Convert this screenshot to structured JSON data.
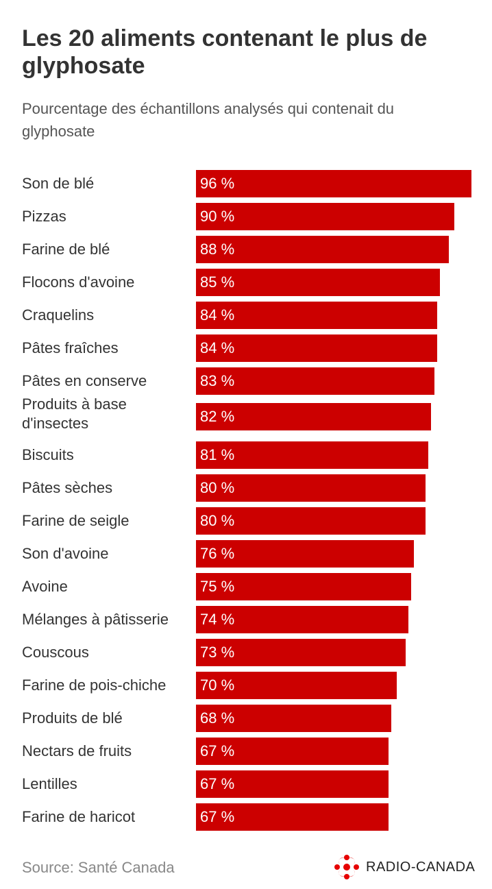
{
  "header": {
    "title": "Les 20 aliments contenant le plus de glyphosate",
    "subtitle": "Pourcentage des échantillons analysés qui contenait du glyphosate"
  },
  "chart_data": {
    "type": "bar",
    "orientation": "horizontal",
    "title": "Les 20 aliments contenant le plus de glyphosate",
    "subtitle": "Pourcentage des échantillons analysés qui contenait du glyphosate",
    "categories": [
      "Son de blé",
      "Pizzas",
      "Farine de blé",
      "Flocons d'avoine",
      "Craquelins",
      "Pâtes fraîches",
      "Pâtes en conserve",
      "Produits à base d'insectes",
      "Biscuits",
      "Pâtes sèches",
      "Farine de seigle",
      "Son d'avoine",
      "Avoine",
      "Mélanges à pâtisserie",
      "Couscous",
      "Farine de pois-chiche",
      "Produits de blé",
      "Nectars de fruits",
      "Lentilles",
      "Farine de haricot"
    ],
    "values": [
      96,
      90,
      88,
      85,
      84,
      84,
      83,
      82,
      81,
      80,
      80,
      76,
      75,
      74,
      73,
      70,
      68,
      67,
      67,
      67
    ],
    "value_labels": [
      "96 %",
      "90 %",
      "88 %",
      "85 %",
      "84 %",
      "84 %",
      "83 %",
      "82 %",
      "81 %",
      "80 %",
      "80 %",
      "76 %",
      "75 %",
      "74 %",
      "73 %",
      "70 %",
      "68 %",
      "67 %",
      "67 %",
      "67 %"
    ],
    "xlabel": "",
    "ylabel": "",
    "xlim": [
      0,
      96
    ],
    "grid": false,
    "legend": "none",
    "bar_color": "#cc0000",
    "label_color": "#ffffff"
  },
  "footer": {
    "source": "Source: Santé Canada",
    "brand": "RADIO-CANADA",
    "brand_color": "#e60000",
    "brand_icon": "radio-canada-gem-icon"
  }
}
